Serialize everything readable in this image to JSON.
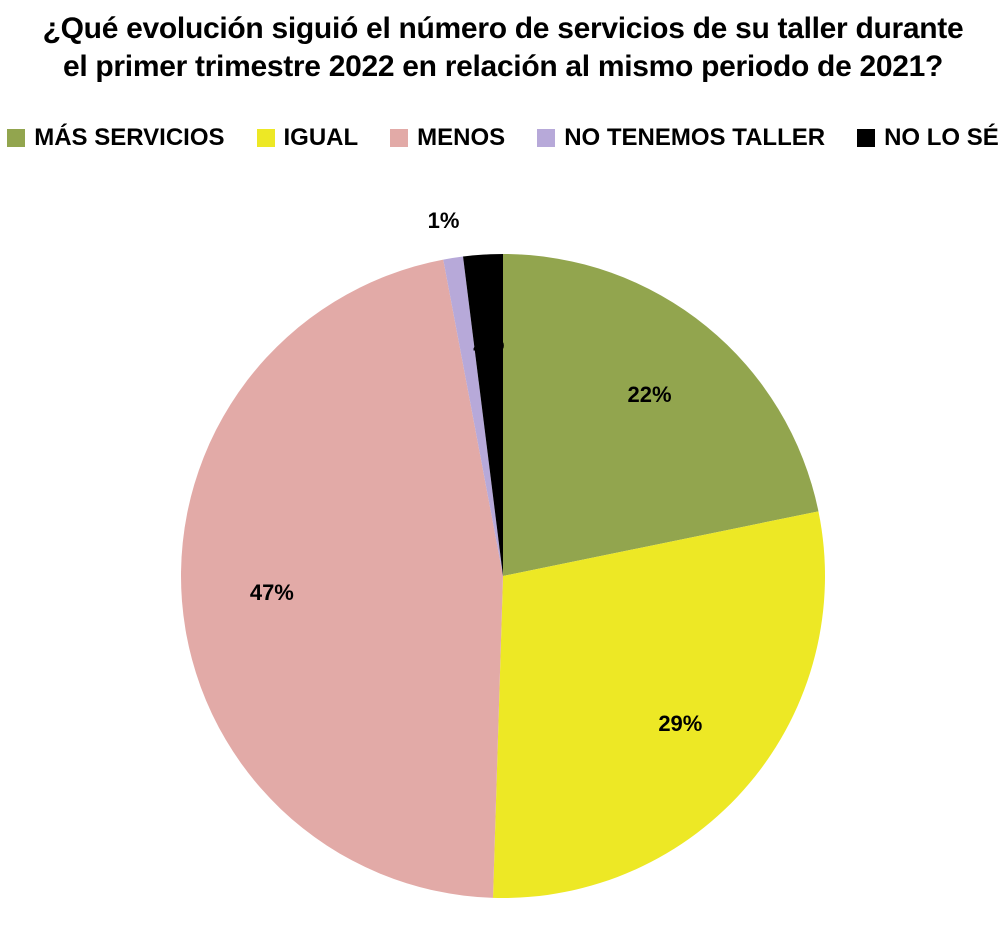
{
  "chart_data": {
    "type": "pie",
    "title_lines": [
      "¿Qué evolución siguió  el número de servicios de su taller durante",
      "el primer  trimestre 2022 en relación al mismo periodo de 2021?"
    ],
    "legend_position": "top",
    "slices": [
      {
        "label": "MÁS SERVICIOS",
        "value": 22,
        "display": "22%",
        "color": "#92a54e"
      },
      {
        "label": "IGUAL",
        "value": 29,
        "display": "29%",
        "color": "#ede825"
      },
      {
        "label": "MENOS",
        "value": 47,
        "display": "47%",
        "color": "#e2aaa7"
      },
      {
        "label": "NO TENEMOS TALLER",
        "value": 1,
        "display": "1%",
        "color": "#b7a9d9"
      },
      {
        "label": "NO LO SÉ",
        "value": 2,
        "display": "2%",
        "color": "#000000"
      }
    ]
  }
}
